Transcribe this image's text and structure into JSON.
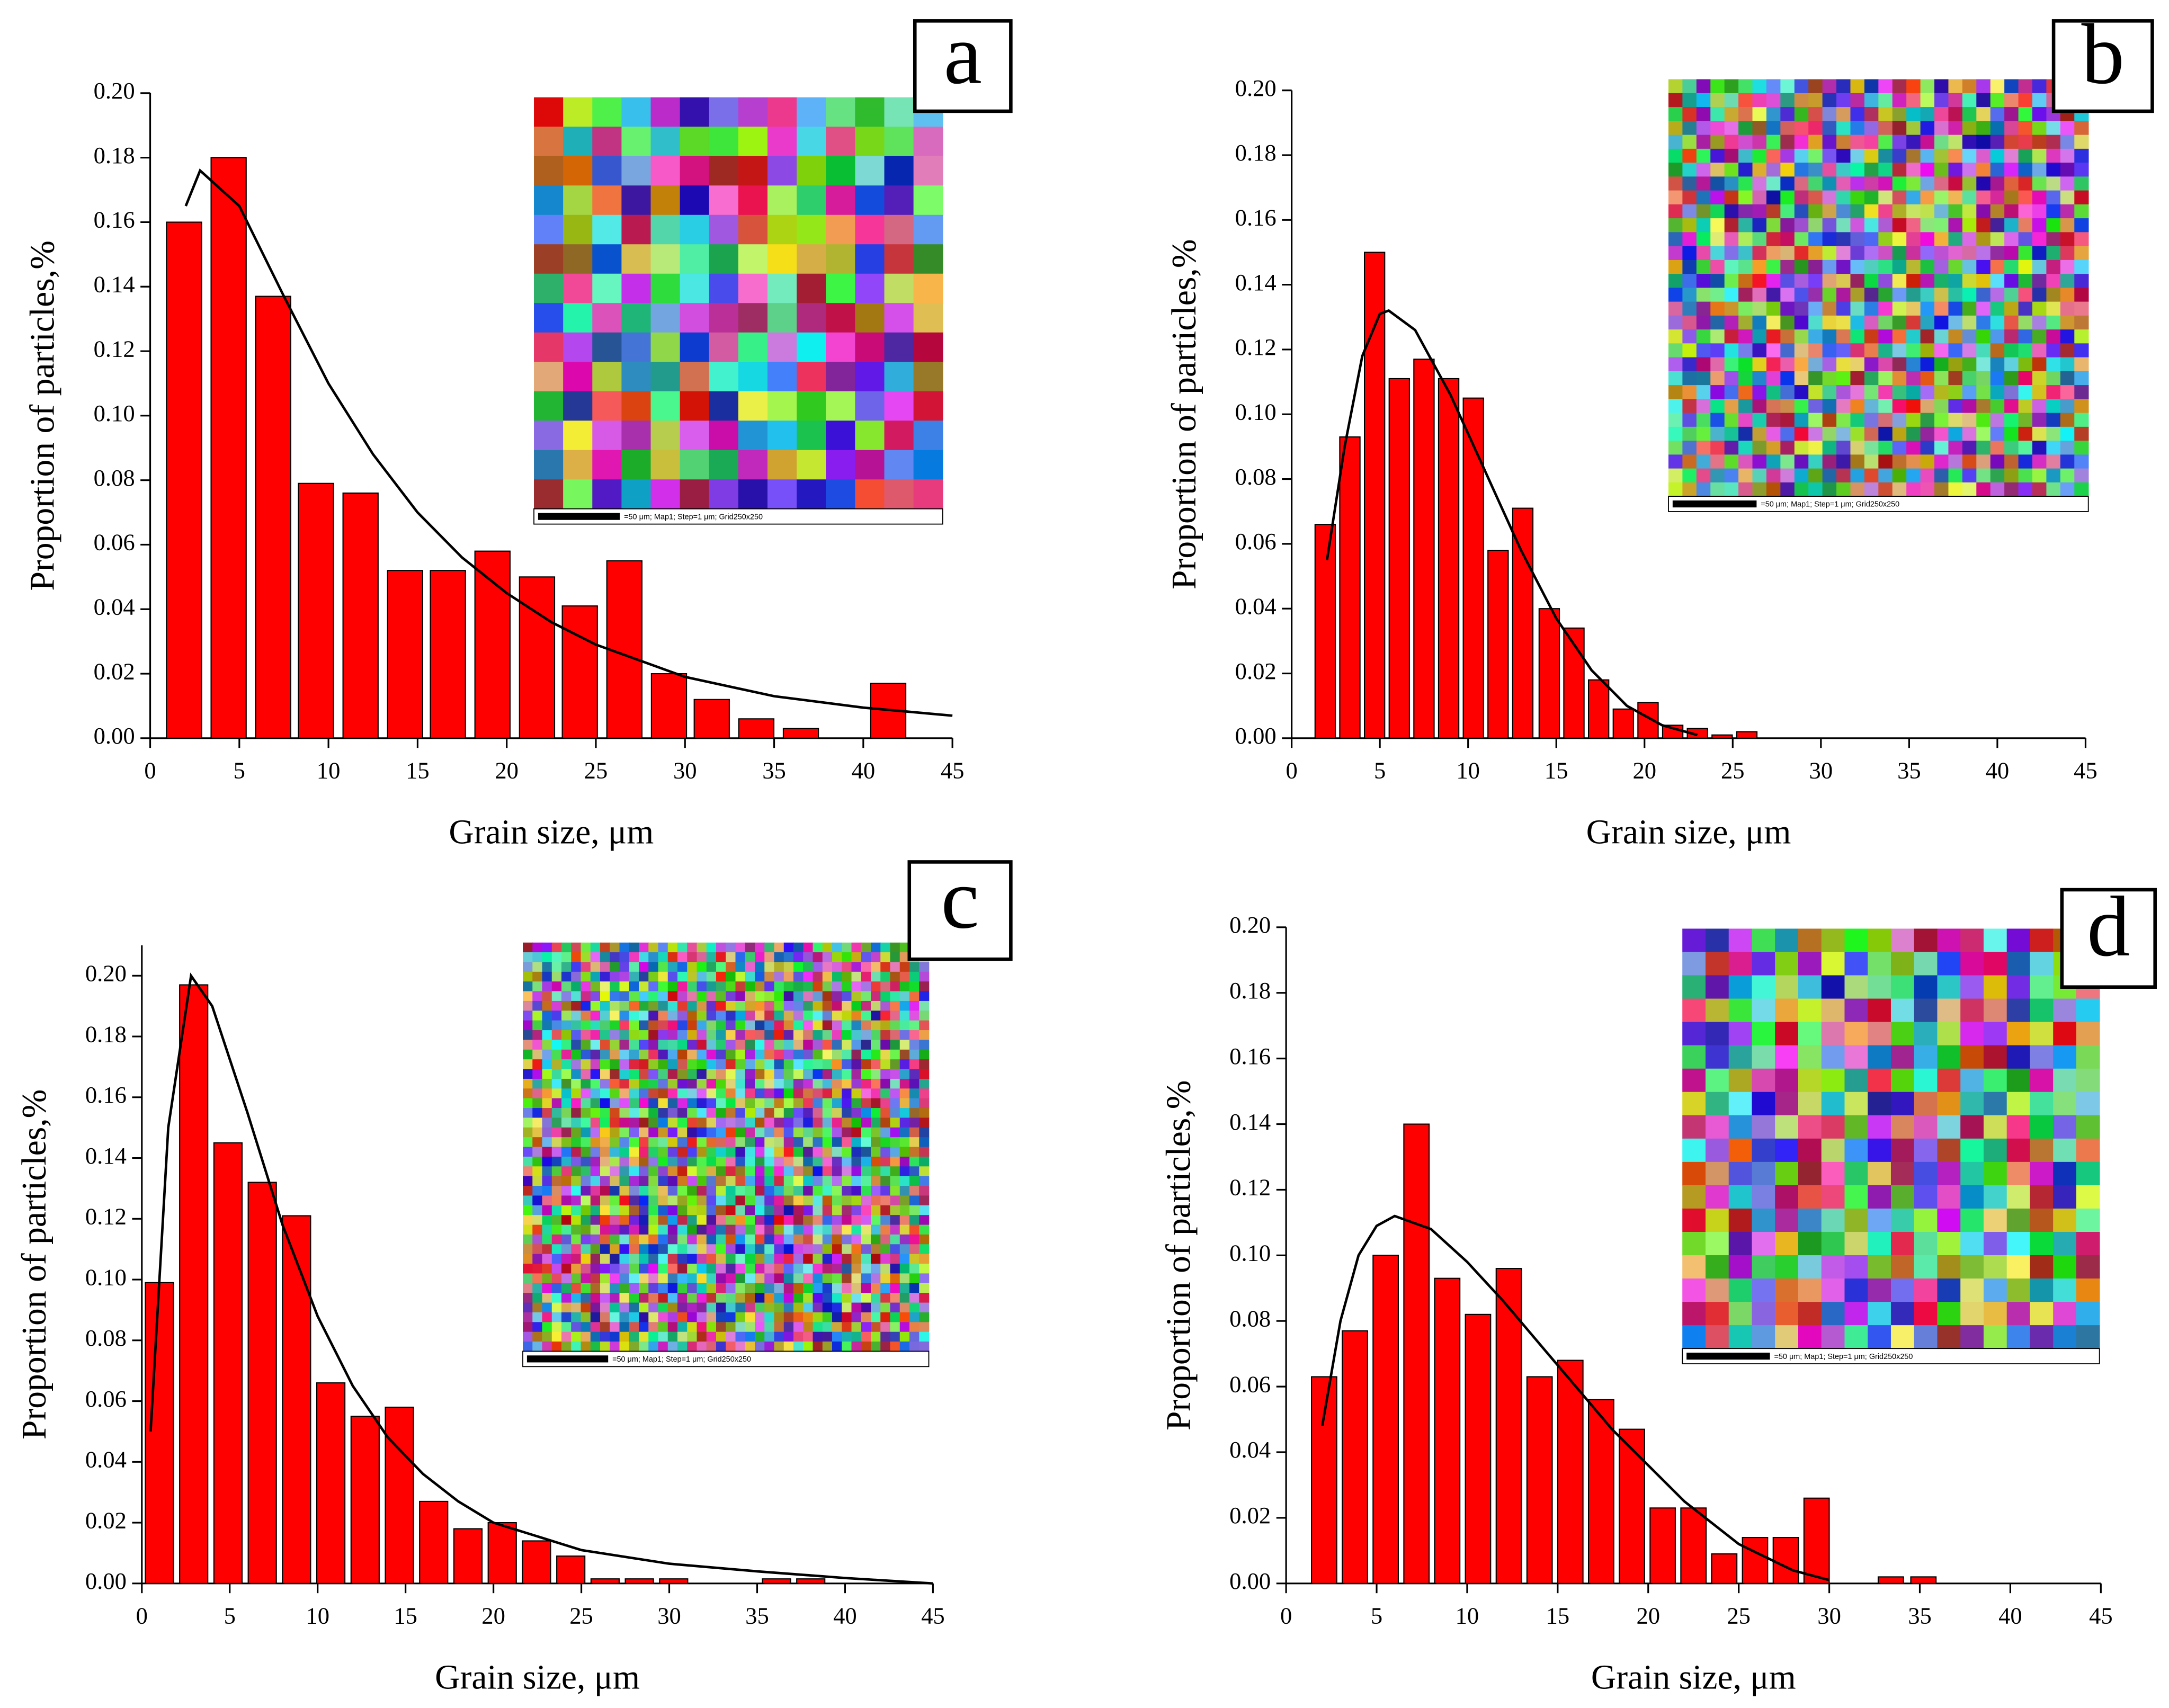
{
  "chart_data": [
    {
      "type": "bar",
      "panel_label": "a",
      "xlabel": "Grain size, μm",
      "ylabel": "Proportion of particles,%",
      "inset_caption": "=50 μm; Map1; Step=1 μm; Grid250x250",
      "x": [
        1.9,
        4.4,
        6.9,
        9.3,
        11.8,
        14.3,
        16.7,
        19.2,
        21.7,
        24.1,
        26.6,
        29.1,
        31.5,
        34.0,
        36.5,
        41.4
      ],
      "values": [
        0.16,
        0.18,
        0.137,
        0.079,
        0.076,
        0.052,
        0.052,
        0.058,
        0.05,
        0.041,
        0.055,
        0.02,
        0.012,
        0.006,
        0.003,
        0.017
      ],
      "color": "#ff0000",
      "fit": {
        "x": [
          2,
          2.8,
          5,
          7.5,
          10,
          12.5,
          15,
          17.5,
          20,
          22.5,
          25,
          30,
          35,
          40,
          45
        ],
        "values": [
          0.165,
          0.176,
          0.165,
          0.137,
          0.11,
          0.088,
          0.07,
          0.056,
          0.045,
          0.036,
          0.029,
          0.019,
          0.013,
          0.0095,
          0.007
        ],
        "color": "#000000"
      },
      "xlim": [
        0,
        45
      ],
      "xticks": [
        0,
        5,
        10,
        15,
        20,
        25,
        30,
        35,
        40,
        45
      ],
      "ylim": [
        0,
        0.2
      ],
      "yticks": [
        {
          "value": 0,
          "label": "0.00"
        },
        {
          "value": 0.02,
          "label": "0.02"
        },
        {
          "value": 0.04,
          "label": "0.04"
        },
        {
          "value": 0.06,
          "label": "0.06"
        },
        {
          "value": 0.08,
          "label": "0.08"
        },
        {
          "value": 0.1,
          "label": "0.10"
        },
        {
          "value": 0.12,
          "label": "0.12"
        },
        {
          "value": 0.14,
          "label": "0.14"
        },
        {
          "value": 0.16,
          "label": "0.16"
        },
        {
          "value": 0.18,
          "label": "0.18"
        },
        {
          "value": 0.2,
          "label": "0.20"
        }
      ]
    },
    {
      "type": "bar",
      "panel_label": "b",
      "xlabel": "Grain size, μm",
      "ylabel": "Proportion of particles,%",
      "inset_caption": "=50 μm; Map1; Step=1 μm; Grid250x250",
      "x": [
        1.9,
        3.3,
        4.7,
        6.1,
        7.5,
        8.9,
        10.3,
        11.7,
        13.1,
        14.6,
        16.0,
        17.4,
        18.8,
        20.2,
        21.6,
        23.0,
        24.4,
        25.8
      ],
      "values": [
        0.066,
        0.093,
        0.15,
        0.111,
        0.117,
        0.111,
        0.105,
        0.058,
        0.071,
        0.04,
        0.034,
        0.018,
        0.009,
        0.011,
        0.004,
        0.003,
        0.001,
        0.002
      ],
      "color": "#ff0000",
      "fit": {
        "x": [
          2,
          3,
          4,
          5,
          5.5,
          7,
          9,
          11,
          13,
          15,
          17,
          19,
          21,
          23
        ],
        "values": [
          0.055,
          0.09,
          0.118,
          0.131,
          0.132,
          0.126,
          0.106,
          0.082,
          0.058,
          0.037,
          0.021,
          0.01,
          0.004,
          0.001
        ],
        "color": "#000000"
      },
      "xlim": [
        0,
        45
      ],
      "xticks": [
        0,
        5,
        10,
        15,
        20,
        25,
        30,
        35,
        40,
        45
      ],
      "ylim": [
        0,
        0.2
      ],
      "yticks": [
        {
          "value": 0,
          "label": "0.00"
        },
        {
          "value": 0.02,
          "label": "0.02"
        },
        {
          "value": 0.04,
          "label": "0.04"
        },
        {
          "value": 0.06,
          "label": "0.06"
        },
        {
          "value": 0.08,
          "label": "0.08"
        },
        {
          "value": 0.1,
          "label": "0.10"
        },
        {
          "value": 0.12,
          "label": "0.12"
        },
        {
          "value": 0.14,
          "label": "0.14"
        },
        {
          "value": 0.16,
          "label": "0.16"
        },
        {
          "value": 0.18,
          "label": "0.18"
        },
        {
          "value": 0.2,
          "label": "0.20"
        }
      ]
    },
    {
      "type": "bar",
      "panel_label": "c",
      "xlabel": "Grain size, μm",
      "ylabel": "Proportion of particles,%",
      "inset_caption": "=50 μm; Map1; Step=1 μm; Grid250x250",
      "x": [
        1.0,
        2.95,
        4.9,
        6.85,
        8.8,
        10.75,
        12.7,
        14.65,
        16.6,
        18.55,
        20.5,
        22.45,
        24.4,
        26.35,
        28.3,
        30.25,
        36.1,
        38.05
      ],
      "values": [
        0.099,
        0.197,
        0.145,
        0.132,
        0.121,
        0.066,
        0.055,
        0.058,
        0.027,
        0.018,
        0.02,
        0.014,
        0.009,
        0.0015,
        0.0015,
        0.0015,
        0.0015,
        0.0015
      ],
      "color": "#ff0000",
      "fit": {
        "x": [
          0.5,
          1.5,
          2.8,
          4,
          6,
          8,
          10,
          12,
          14,
          16,
          18,
          20,
          25,
          30,
          35,
          40,
          45
        ],
        "values": [
          0.05,
          0.15,
          0.2,
          0.19,
          0.155,
          0.118,
          0.088,
          0.065,
          0.048,
          0.036,
          0.027,
          0.02,
          0.011,
          0.0065,
          0.004,
          0.0018,
          0
        ],
        "color": "#000000"
      },
      "xlim": [
        0,
        45
      ],
      "xticks": [
        0,
        5,
        10,
        15,
        20,
        25,
        30,
        35,
        40,
        45
      ],
      "ylim": [
        0,
        0.21
      ],
      "yticks": [
        {
          "value": 0,
          "label": "0.00"
        },
        {
          "value": 0.02,
          "label": "0.02"
        },
        {
          "value": 0.04,
          "label": "0.04"
        },
        {
          "value": 0.06,
          "label": "0.06"
        },
        {
          "value": 0.08,
          "label": "0.08"
        },
        {
          "value": 0.1,
          "label": "0.10"
        },
        {
          "value": 0.12,
          "label": "0.12"
        },
        {
          "value": 0.14,
          "label": "0.14"
        },
        {
          "value": 0.16,
          "label": "0.16"
        },
        {
          "value": 0.18,
          "label": "0.18"
        },
        {
          "value": 0.2,
          "label": "0.20"
        }
      ]
    },
    {
      "type": "bar",
      "panel_label": "d",
      "xlabel": "Grain size, μm",
      "ylabel": "Proportion of particles,%",
      "inset_caption": "=50 μm; Map1; Step=1 μm; Grid250x250",
      "x": [
        2.1,
        3.8,
        5.5,
        7.2,
        8.9,
        10.6,
        12.3,
        14.0,
        15.7,
        17.4,
        19.1,
        20.8,
        22.5,
        24.2,
        25.9,
        27.6,
        29.3,
        33.4,
        35.2
      ],
      "values": [
        0.063,
        0.077,
        0.1,
        0.14,
        0.093,
        0.082,
        0.096,
        0.063,
        0.068,
        0.056,
        0.047,
        0.023,
        0.023,
        0.009,
        0.014,
        0.014,
        0.026,
        0.002,
        0.002
      ],
      "color": "#ff0000",
      "fit": {
        "x": [
          2,
          3,
          4,
          5,
          6,
          8,
          10,
          12,
          14,
          16,
          18,
          20,
          22,
          25,
          28,
          30
        ],
        "values": [
          0.048,
          0.08,
          0.1,
          0.109,
          0.112,
          0.108,
          0.098,
          0.086,
          0.073,
          0.06,
          0.047,
          0.036,
          0.025,
          0.012,
          0.004,
          0.001
        ],
        "color": "#000000"
      },
      "xlim": [
        0,
        45
      ],
      "xticks": [
        0,
        5,
        10,
        15,
        20,
        25,
        30,
        35,
        40,
        45
      ],
      "ylim": [
        0,
        0.2
      ],
      "yticks": [
        {
          "value": 0,
          "label": "0.00"
        },
        {
          "value": 0.02,
          "label": "0.02"
        },
        {
          "value": 0.04,
          "label": "0.04"
        },
        {
          "value": 0.06,
          "label": "0.06"
        },
        {
          "value": 0.08,
          "label": "0.08"
        },
        {
          "value": 0.1,
          "label": "0.10"
        },
        {
          "value": 0.12,
          "label": "0.12"
        },
        {
          "value": 0.14,
          "label": "0.14"
        },
        {
          "value": 0.16,
          "label": "0.16"
        },
        {
          "value": 0.18,
          "label": "0.18"
        },
        {
          "value": 0.2,
          "label": "0.20"
        }
      ]
    }
  ]
}
